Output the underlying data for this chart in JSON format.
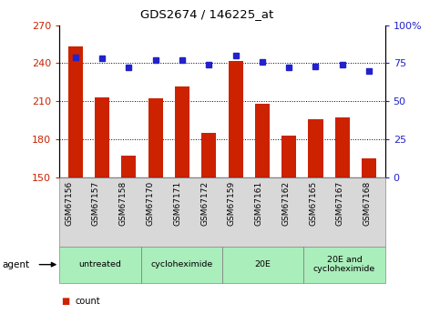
{
  "title": "GDS2674 / 146225_at",
  "categories": [
    "GSM67156",
    "GSM67157",
    "GSM67158",
    "GSM67170",
    "GSM67171",
    "GSM67172",
    "GSM67159",
    "GSM67161",
    "GSM67162",
    "GSM67165",
    "GSM67167",
    "GSM67168"
  ],
  "counts": [
    253,
    213,
    167,
    212,
    222,
    185,
    242,
    208,
    183,
    196,
    197,
    165
  ],
  "percentiles": [
    79,
    78,
    72,
    77,
    77,
    74,
    80,
    76,
    72,
    73,
    74,
    70
  ],
  "ylim_left": [
    150,
    270
  ],
  "ylim_right": [
    0,
    100
  ],
  "yticks_left": [
    150,
    180,
    210,
    240,
    270
  ],
  "yticks_right": [
    0,
    25,
    50,
    75,
    100
  ],
  "ytick_labels_right": [
    "0",
    "25",
    "50",
    "75",
    "100%"
  ],
  "bar_color": "#cc2200",
  "dot_color": "#2222cc",
  "bg_color": "#ffffff",
  "agent_groups": [
    {
      "label": "untreated",
      "start": 0,
      "end": 3
    },
    {
      "label": "cycloheximide",
      "start": 3,
      "end": 6
    },
    {
      "label": "20E",
      "start": 6,
      "end": 9
    },
    {
      "label": "20E and\ncycloheximide",
      "start": 9,
      "end": 12
    }
  ],
  "agent_group_color": "#aaeebb",
  "xtick_bg_color": "#d8d8d8",
  "legend_count_color": "#cc2200",
  "legend_pct_color": "#2222cc",
  "left_tick_color": "#cc2200",
  "right_tick_color": "#2222cc"
}
